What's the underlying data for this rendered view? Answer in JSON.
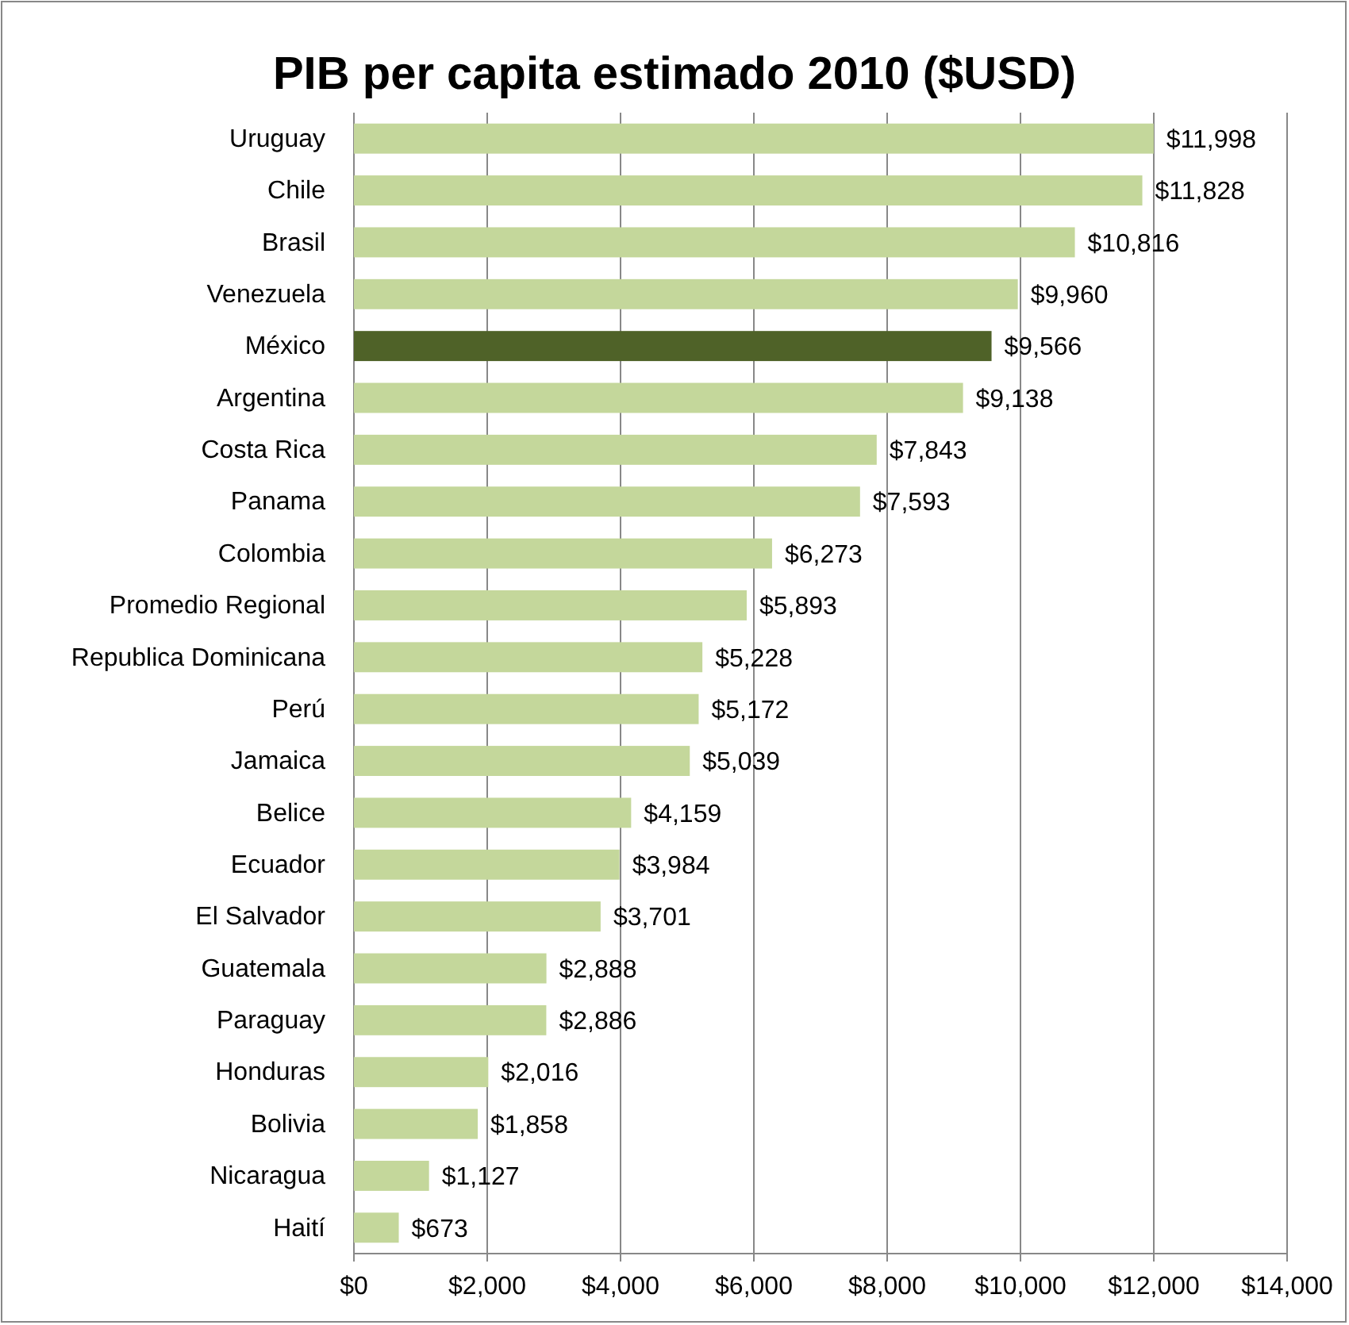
{
  "chart_data": {
    "type": "bar",
    "orientation": "horizontal",
    "title": "PIB per capita estimado 2010 ($USD)",
    "categories": [
      "Uruguay",
      "Chile",
      "Brasil",
      "Venezuela",
      "México",
      "Argentina",
      "Costa Rica",
      "Panama",
      "Colombia",
      "Promedio Regional",
      "Republica Dominicana",
      "Perú",
      "Jamaica",
      "Belice",
      "Ecuador",
      "El Salvador",
      "Guatemala",
      "Paraguay",
      "Honduras",
      "Bolivia",
      "Nicaragua",
      "Haití"
    ],
    "values": [
      11998,
      11828,
      10816,
      9960,
      9566,
      9138,
      7843,
      7593,
      6273,
      5893,
      5228,
      5172,
      5039,
      4159,
      3984,
      3701,
      2888,
      2886,
      2016,
      1858,
      1127,
      673
    ],
    "value_labels": [
      "$11,998",
      "$11,828",
      "$10,816",
      "$9,960",
      "$9,566",
      "$9,138",
      "$7,843",
      "$7,593",
      "$6,273",
      "$5,893",
      "$5,228",
      "$5,172",
      "$5,039",
      "$4,159",
      "$3,984",
      "$3,701",
      "$2,888",
      "$2,886",
      "$2,016",
      "$1,858",
      "$1,127",
      "$673"
    ],
    "colors": [
      "#c4d79b",
      "#c4d79b",
      "#c4d79b",
      "#c4d79b",
      "#4f6228",
      "#c4d79b",
      "#c4d79b",
      "#c4d79b",
      "#c4d79b",
      "#c4d79b",
      "#c4d79b",
      "#c4d79b",
      "#c4d79b",
      "#c4d79b",
      "#c4d79b",
      "#c4d79b",
      "#c4d79b",
      "#c4d79b",
      "#c4d79b",
      "#c4d79b",
      "#c4d79b",
      "#c4d79b"
    ],
    "xlim": [
      0,
      14000
    ],
    "xticks": [
      {
        "value": 0,
        "label": "$0"
      },
      {
        "value": 2000,
        "label": "$2,000"
      },
      {
        "value": 4000,
        "label": "$4,000"
      },
      {
        "value": 6000,
        "label": "$6,000"
      },
      {
        "value": 8000,
        "label": "$8,000"
      },
      {
        "value": 10000,
        "label": "$10,000"
      },
      {
        "value": 12000,
        "label": "$12,000"
      },
      {
        "value": 14000,
        "label": "$14,000"
      }
    ],
    "grid": "x"
  }
}
